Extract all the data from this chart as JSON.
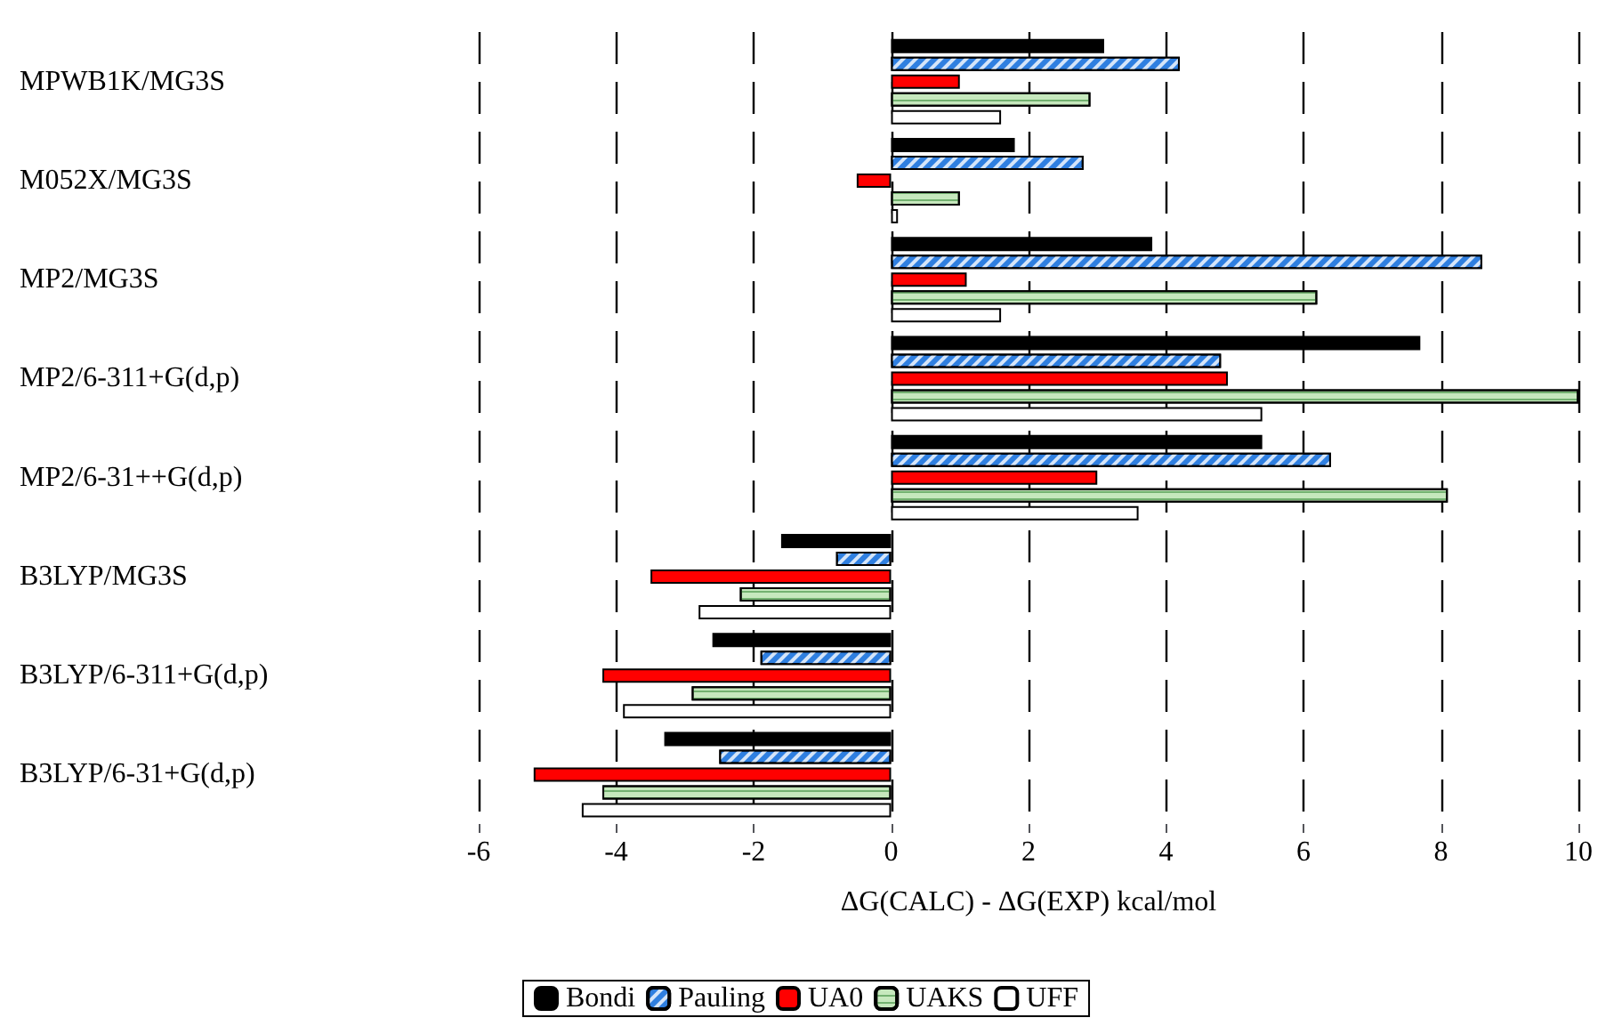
{
  "chart_data": {
    "type": "bar",
    "orientation": "horizontal",
    "xlabel": "ΔG(CALC) - ΔG(EXP) kcal/mol",
    "categories": [
      "MPWB1K/MG3S",
      "M052X/MG3S",
      "MP2/MG3S",
      "MP2/6-311+G(d,p)",
      "MP2/6-31++G(d,p)",
      "B3LYP/MG3S",
      "B3LYP/6-311+G(d,p)",
      "B3LYP/6-31+G(d,p)"
    ],
    "series": [
      {
        "name": "Bondi",
        "color": "#000000",
        "values": [
          3.1,
          1.8,
          3.8,
          7.7,
          5.4,
          -1.6,
          -2.6,
          -3.3
        ]
      },
      {
        "name": "Pauling",
        "color": "#2f7fe0",
        "values": [
          4.2,
          2.8,
          8.6,
          4.8,
          6.4,
          -0.8,
          -1.9,
          -2.5
        ]
      },
      {
        "name": "UA0",
        "color": "#ff0000",
        "values": [
          1.0,
          -0.5,
          1.1,
          4.9,
          3.0,
          -3.5,
          -4.2,
          -5.2
        ]
      },
      {
        "name": "UAKS",
        "color": "#c6e8bd",
        "values": [
          2.9,
          1.0,
          6.2,
          10,
          8.1,
          -2.2,
          -2.9,
          -4.2
        ]
      },
      {
        "name": "UFF",
        "color": "#ffffff",
        "values": [
          1.6,
          0.1,
          1.6,
          5.4,
          3.6,
          -2.8,
          -3.9,
          -4.5
        ]
      }
    ],
    "xlim": [
      -6,
      10
    ],
    "xticks": [
      -6,
      -4,
      -2,
      0,
      2,
      4,
      6,
      8,
      10
    ],
    "grid": "x",
    "legend": "bottom"
  }
}
